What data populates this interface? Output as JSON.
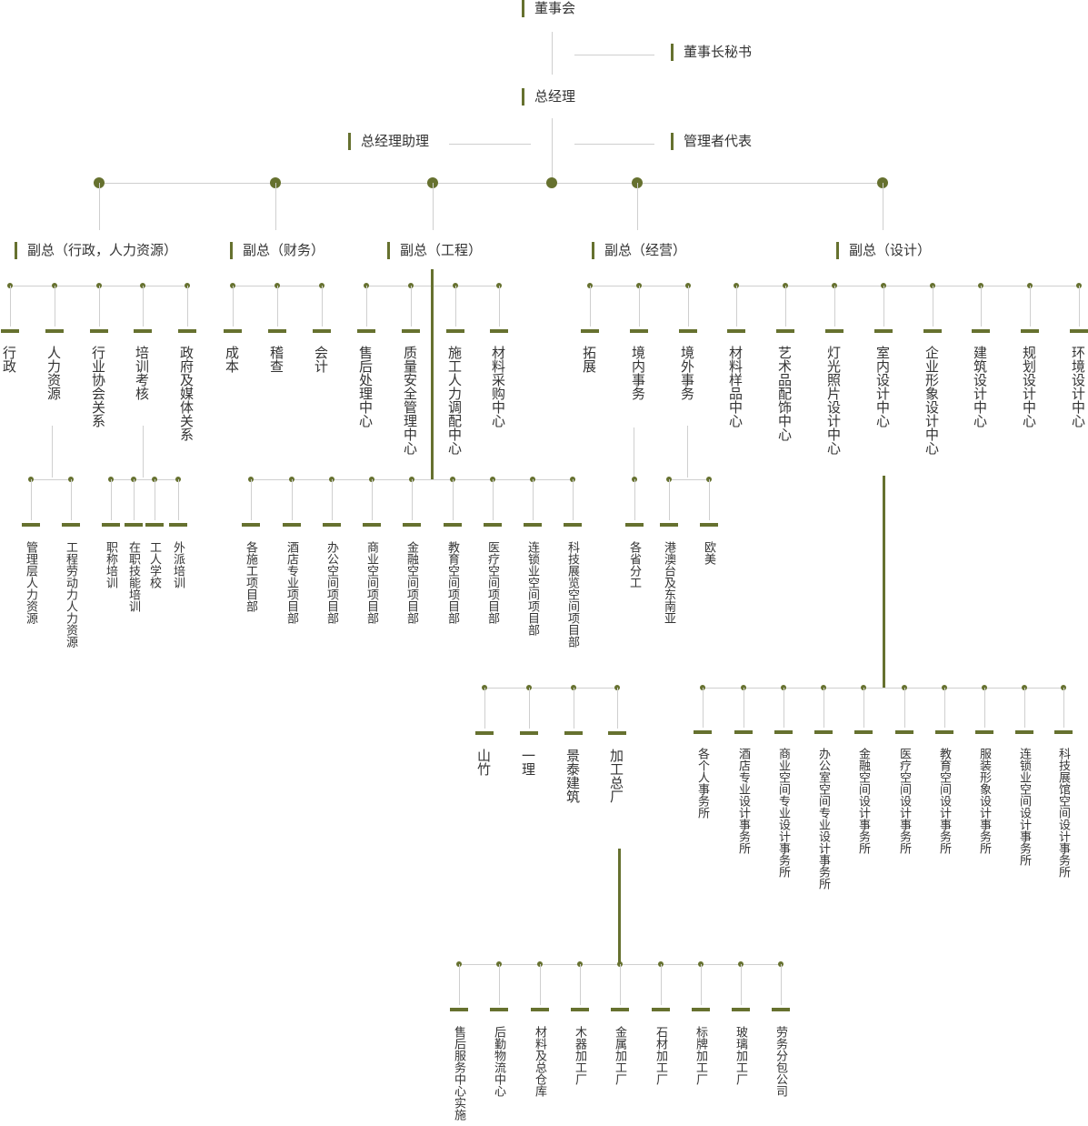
{
  "accent_color": "#66712f",
  "line_color": "#cfcfcf",
  "top": {
    "board": "董事会",
    "chairman_secretary": "董事长秘书",
    "general_manager": "总经理",
    "gm_assistant": "总经理助理",
    "management_rep": "管理者代表"
  },
  "vice_presidents": [
    "副总（行政，人力资源）",
    "副总（财务）",
    "副总（工程）",
    "副总（经营）",
    "副总（设计）"
  ],
  "departments": [
    [
      "行政",
      "人力资源",
      "行业协会关系",
      "培训考核",
      "政府及媒体关系"
    ],
    [
      "成本",
      "稽查",
      "会计"
    ],
    [
      "售后处理中心",
      "质量安全管理中心",
      "施工人力调配中心",
      "材料采购中心"
    ],
    [
      "拓展",
      "境内事务",
      "境外事务"
    ],
    [
      "材料样品中心",
      "艺术品配饰中心",
      "灯光照片设计中心",
      "室内设计中心",
      "企业形象设计中心",
      "建筑设计中心",
      "规划设计中心",
      "环境设计中心"
    ]
  ],
  "sub_units": {
    "hr": [
      "管理层人力资源",
      "工程劳动力人力资源"
    ],
    "training": [
      "职称培训",
      "在职技能培训",
      "工人学校",
      "外派培训"
    ],
    "projects": [
      "各施工项目部",
      "酒店专业项目部",
      "办公空间项目部",
      "商业空间项目部",
      "金融空间项目部",
      "教育空间项目部",
      "医疗空间项目部",
      "连锁业空间项目部",
      "科技展览空间项目部"
    ],
    "domestic": [
      "各省分工"
    ],
    "overseas": [
      "港澳台及东南亚",
      "欧美"
    ],
    "construction": [
      "山竹",
      "一理",
      "景泰建筑",
      "加工总厂"
    ],
    "design_studios": [
      "各个人事务所",
      "酒店专业设计事务所",
      "商业空间专业设计事务所",
      "办公室空间专业设计事务所",
      "金融空间设计事务所",
      "医疗空间设计事务所",
      "教育空间设计事务所",
      "服装形象设计事务所",
      "连锁业空间设计事务所",
      "科技展馆空间设计事务所"
    ],
    "factories": [
      "售后服务中心实施",
      "后勤物流中心",
      "材料及总仓库",
      "木器加工厂",
      "金属加工厂",
      "石材加工厂",
      "标牌加工厂",
      "玻璃加工厂",
      "劳务分包公司"
    ]
  }
}
